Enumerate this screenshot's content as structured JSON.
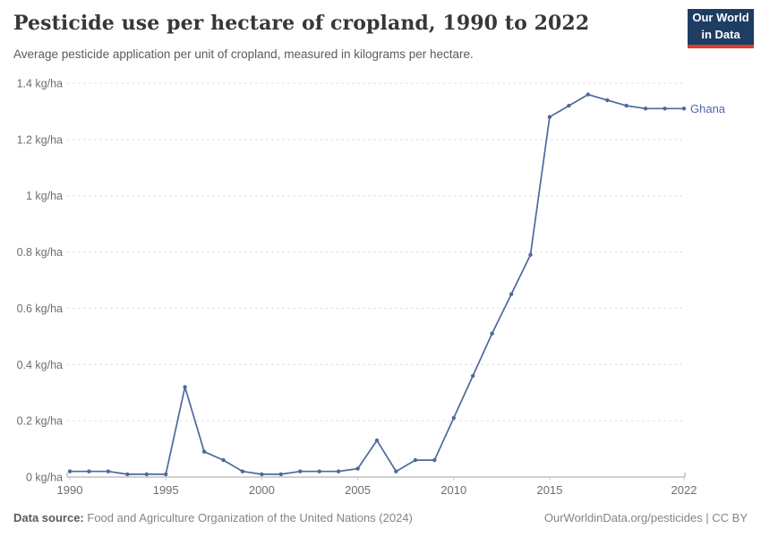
{
  "header": {
    "title": "Pesticide use per hectare of cropland, 1990 to 2022",
    "subtitle": "Average pesticide application per unit of cropland, measured in kilograms per hectare.",
    "logo": {
      "line1": "Our World",
      "line2": "in Data"
    }
  },
  "chart_data": {
    "type": "line",
    "title": "Pesticide use per hectare of cropland, 1990 to 2022",
    "xlabel": "",
    "ylabel": "kg/ha",
    "xlim": [
      1990,
      2022
    ],
    "ylim": [
      0,
      1.4
    ],
    "grid": "horizontal-dashed",
    "legend_position": "end-of-line",
    "x": [
      1990,
      1991,
      1992,
      1993,
      1994,
      1995,
      1996,
      1997,
      1998,
      1999,
      2000,
      2001,
      2002,
      2003,
      2004,
      2005,
      2006,
      2007,
      2008,
      2009,
      2010,
      2011,
      2012,
      2013,
      2014,
      2015,
      2016,
      2017,
      2018,
      2019,
      2020,
      2021,
      2022
    ],
    "series": [
      {
        "name": "Ghana",
        "color": "#4d699c",
        "values": [
          0.02,
          0.02,
          0.02,
          0.01,
          0.01,
          0.01,
          0.32,
          0.09,
          0.06,
          0.02,
          0.01,
          0.01,
          0.02,
          0.02,
          0.02,
          0.03,
          0.13,
          0.02,
          0.06,
          0.06,
          0.21,
          0.36,
          0.51,
          0.65,
          0.79,
          1.28,
          1.32,
          1.36,
          1.34,
          1.32,
          1.31,
          1.31,
          1.31
        ]
      }
    ],
    "yticks": [
      0,
      0.2,
      0.4,
      0.6,
      0.8,
      1,
      1.2,
      1.4
    ],
    "ytick_labels": [
      "0 kg/ha",
      "0.2 kg/ha",
      "0.4 kg/ha",
      "0.6 kg/ha",
      "0.8 kg/ha",
      "1 kg/ha",
      "1.2 kg/ha",
      "1.4 kg/ha"
    ],
    "xticks": [
      1990,
      1995,
      2000,
      2005,
      2010,
      2015,
      2022
    ],
    "xtick_labels": [
      "1990",
      "1995",
      "2000",
      "2005",
      "2010",
      "2015",
      "2022"
    ]
  },
  "footer": {
    "source_label": "Data source:",
    "source_text": "Food and Agriculture Organization of the United Nations (2024)",
    "right_text": "OurWorldinData.org/pesticides | CC BY"
  },
  "colors": {
    "line": "#4d699c",
    "grid": "#e0e0e0",
    "axis": "#a1a1a1",
    "tick_text": "#6e6e6e",
    "logo_bg": "#1d3d63",
    "logo_bar": "#dc3c32"
  }
}
